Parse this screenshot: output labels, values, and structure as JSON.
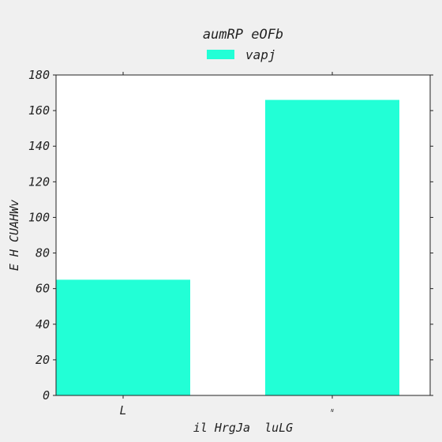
{
  "chart_data": {
    "type": "bar",
    "title": "aumRP eOFb",
    "xlabel": "il HrgJa  luLG",
    "ylabel": "E H CUAHWv",
    "categories": [
      "L",
      "ᴺ"
    ],
    "series": [
      {
        "name": "vapj",
        "values": [
          65,
          166
        ],
        "color": "#22ffd6"
      }
    ],
    "ylim": [
      0,
      180
    ],
    "yticks": [
      0,
      20,
      40,
      60,
      80,
      100,
      120,
      140,
      160,
      180
    ],
    "yticklabels": [
      "0",
      "20",
      "40",
      "60",
      "80",
      "100",
      "120",
      "140",
      "160",
      "180"
    ],
    "grid": false,
    "legend": "top-center"
  },
  "colors": {
    "background": "#f0f0f0",
    "plot_background": "#ffffff",
    "axis": "#222222"
  }
}
